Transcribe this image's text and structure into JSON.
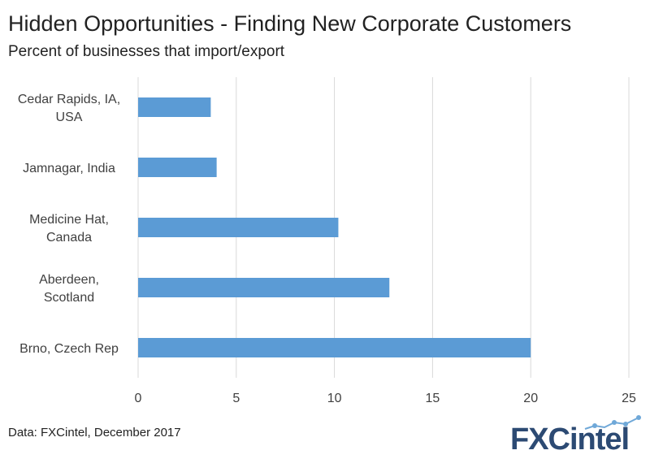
{
  "header": {
    "title": "Hidden Opportunities - Finding New Corporate Customers",
    "subtitle": "Percent of businesses that import/export"
  },
  "footer": {
    "source": "Data: FXCintel, December 2017"
  },
  "logo": {
    "text": "FXCintel",
    "color": "#2c4a73",
    "accent": "#6fa8d8"
  },
  "chart_data": {
    "type": "bar",
    "orientation": "horizontal",
    "title": "Hidden Opportunities - Finding New Corporate Customers",
    "subtitle": "Percent of businesses that import/export",
    "categories": [
      [
        "Cedar Rapids, IA,",
        "USA"
      ],
      [
        "Jamnagar, India"
      ],
      [
        "Medicine Hat,",
        "Canada"
      ],
      [
        "Aberdeen,",
        "Scotland"
      ],
      [
        "Brno, Czech Rep"
      ]
    ],
    "values": [
      3.7,
      4.0,
      10.2,
      12.8,
      20.0
    ],
    "xlim": [
      0,
      25
    ],
    "ticks": [
      "0",
      "5",
      "10",
      "15",
      "20",
      "25"
    ],
    "xlabel": "",
    "ylabel": "",
    "grid": true,
    "bar_color": "#5b9bd5",
    "grid_color": "#d9d9d9"
  }
}
